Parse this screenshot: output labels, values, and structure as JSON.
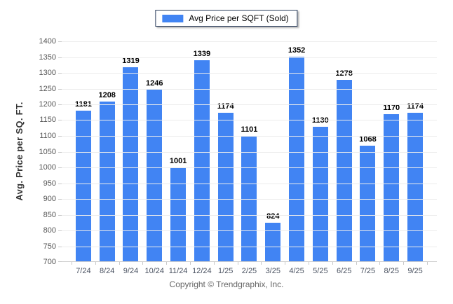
{
  "legend": {
    "label": "Avg Price per SQFT (Sold)",
    "swatch_color": "#4184F3"
  },
  "footer": {
    "copyright": "Copyright © Trendgraphix, Inc."
  },
  "chart_data": {
    "type": "bar",
    "title": "",
    "series_name": "Avg Price per SQFT (Sold)",
    "categories": [
      "7/24",
      "8/24",
      "9/24",
      "10/24",
      "11/24",
      "12/24",
      "1/25",
      "2/25",
      "3/25",
      "4/25",
      "5/25",
      "6/25",
      "7/25",
      "8/25",
      "9/25"
    ],
    "values": [
      1181,
      1208,
      1319,
      1246,
      1001,
      1339,
      1174,
      1101,
      824,
      1352,
      1130,
      1278,
      1068,
      1170,
      1174
    ],
    "xlabel": "",
    "ylabel": "Avg. Price per SQ. FT.",
    "ylim": [
      700,
      1400
    ],
    "ytick_step": 50,
    "grid": true,
    "value_labels": true,
    "legend_position": "top-center",
    "bar_color": "#4184F3",
    "gridline_color": "#ececec"
  }
}
